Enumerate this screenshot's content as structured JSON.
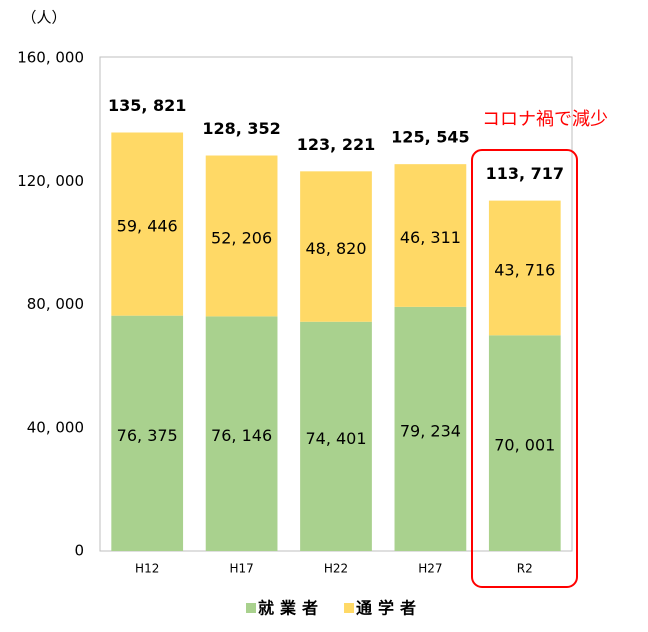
{
  "chart_data": {
    "type": "stacked_bar",
    "y_label": "（人）",
    "annotation": "コロナ禍で減少",
    "categories": [
      "H12",
      "H17",
      "H22",
      "H27",
      "R2"
    ],
    "series": [
      {
        "name": "就業者",
        "color": "#a9d18e",
        "values": [
          76375,
          76146,
          74401,
          79234,
          70001
        ],
        "value_labels": [
          "76, 375",
          "76, 146",
          "74, 401",
          "79, 234",
          "70, 001"
        ]
      },
      {
        "name": "通学者",
        "color": "#ffd966",
        "values": [
          59446,
          52206,
          48820,
          46311,
          43716
        ],
        "value_labels": [
          "59, 446",
          "52, 206",
          "48, 820",
          "46, 311",
          "43, 716"
        ]
      }
    ],
    "totals": [
      135821,
      128352,
      123221,
      125545,
      113717
    ],
    "total_labels": [
      "135, 821",
      "128, 352",
      "123, 221",
      "125, 545",
      "113, 717"
    ],
    "ylim": [
      0,
      160000
    ],
    "yticks": [
      0,
      {
        "value": 40000,
        "label": "40, 000"
      },
      {
        "value": 80000,
        "label": "80, 000"
      },
      {
        "value": 120000,
        "label": "120, 000"
      },
      {
        "value": 160000,
        "label": "160, 000"
      }
    ],
    "grid": false
  }
}
